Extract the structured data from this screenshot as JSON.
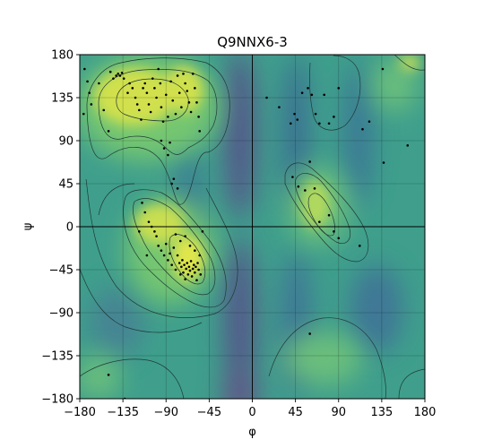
{
  "chart_data": {
    "type": "scatter",
    "title": "Q9NNX6-3",
    "xlabel": "φ",
    "ylabel": "ψ",
    "xlim": [
      -180,
      180
    ],
    "ylim": [
      -180,
      180
    ],
    "xticks": [
      -180,
      -135,
      -90,
      -45,
      0,
      45,
      90,
      135,
      180
    ],
    "yticks": [
      -180,
      -135,
      -90,
      -45,
      0,
      45,
      90,
      135,
      180
    ],
    "xtick_labels": [
      "−180",
      "−135",
      "−90",
      "−45",
      "0",
      "45",
      "90",
      "135",
      "180"
    ],
    "ytick_labels": [
      "−180",
      "−135",
      "−90",
      "−45",
      "0",
      "45",
      "90",
      "135",
      "180"
    ],
    "grid": true,
    "background": "Ramachandran density map (viridis colormap) with contour lines",
    "colors": {
      "low": "#44337c",
      "mid": "#3aa08e",
      "high": "#e4e84a",
      "points": "#000000",
      "contour": "#1f3a36"
    },
    "points": [
      [
        -175,
        165
      ],
      [
        -172,
        152
      ],
      [
        -170,
        140
      ],
      [
        -168,
        128
      ],
      [
        -176,
        118
      ],
      [
        -160,
        150
      ],
      [
        -155,
        122
      ],
      [
        -150,
        100
      ],
      [
        -148,
        162
      ],
      [
        -145,
        155
      ],
      [
        -142,
        158
      ],
      [
        -140,
        160
      ],
      [
        -138,
        158
      ],
      [
        -136,
        161
      ],
      [
        -134,
        155
      ],
      [
        -130,
        140
      ],
      [
        -128,
        150
      ],
      [
        -125,
        145
      ],
      [
        -122,
        135
      ],
      [
        -120,
        128
      ],
      [
        -118,
        122
      ],
      [
        -116,
        112
      ],
      [
        -114,
        145
      ],
      [
        -112,
        150
      ],
      [
        -110,
        140
      ],
      [
        -108,
        128
      ],
      [
        -106,
        120
      ],
      [
        -104,
        155
      ],
      [
        -102,
        145
      ],
      [
        -100,
        135
      ],
      [
        -98,
        165
      ],
      [
        -96,
        150
      ],
      [
        -95,
        125
      ],
      [
        -93,
        110
      ],
      [
        -90,
        138
      ],
      [
        -88,
        115
      ],
      [
        -85,
        152
      ],
      [
        -83,
        132
      ],
      [
        -80,
        118
      ],
      [
        -78,
        158
      ],
      [
        -76,
        140
      ],
      [
        -74,
        125
      ],
      [
        -72,
        160
      ],
      [
        -70,
        150
      ],
      [
        -68,
        142
      ],
      [
        -66,
        130
      ],
      [
        -64,
        120
      ],
      [
        -62,
        160
      ],
      [
        -60,
        145
      ],
      [
        -58,
        130
      ],
      [
        -56,
        115
      ],
      [
        -55,
        100
      ],
      [
        -95,
        90
      ],
      [
        -92,
        82
      ],
      [
        -88,
        75
      ],
      [
        -86,
        88
      ],
      [
        -84,
        45
      ],
      [
        -82,
        50
      ],
      [
        -78,
        40
      ],
      [
        -115,
        25
      ],
      [
        -112,
        15
      ],
      [
        -108,
        5
      ],
      [
        -105,
        0
      ],
      [
        -102,
        -5
      ],
      [
        -100,
        -10
      ],
      [
        -98,
        -20
      ],
      [
        -95,
        -25
      ],
      [
        -92,
        -30
      ],
      [
        -90,
        -18
      ],
      [
        -88,
        -35
      ],
      [
        -86,
        -28
      ],
      [
        -84,
        -40
      ],
      [
        -82,
        -22
      ],
      [
        -80,
        -45
      ],
      [
        -78,
        -30
      ],
      [
        -76,
        -38
      ],
      [
        -75,
        -50
      ],
      [
        -74,
        -42
      ],
      [
        -73,
        -35
      ],
      [
        -72,
        -48
      ],
      [
        -71,
        -40
      ],
      [
        -70,
        -55
      ],
      [
        -69,
        -44
      ],
      [
        -68,
        -38
      ],
      [
        -67,
        -50
      ],
      [
        -66,
        -42
      ],
      [
        -65,
        -46
      ],
      [
        -64,
        -36
      ],
      [
        -63,
        -52
      ],
      [
        -62,
        -44
      ],
      [
        -61,
        -40
      ],
      [
        -60,
        -48
      ],
      [
        -59,
        -42
      ],
      [
        -58,
        -56
      ],
      [
        -57,
        -38
      ],
      [
        -56,
        -45
      ],
      [
        -55,
        -30
      ],
      [
        -54,
        -50
      ],
      [
        -52,
        -5
      ],
      [
        -60,
        -25
      ],
      [
        -65,
        -20
      ],
      [
        -70,
        -10
      ],
      [
        -75,
        -15
      ],
      [
        -80,
        -8
      ],
      [
        -110,
        -30
      ],
      [
        -118,
        -5
      ],
      [
        15,
        135
      ],
      [
        28,
        125
      ],
      [
        40,
        108
      ],
      [
        44,
        118
      ],
      [
        47,
        112
      ],
      [
        52,
        140
      ],
      [
        58,
        145
      ],
      [
        62,
        138
      ],
      [
        66,
        118
      ],
      [
        70,
        108
      ],
      [
        75,
        138
      ],
      [
        80,
        108
      ],
      [
        85,
        115
      ],
      [
        90,
        145
      ],
      [
        115,
        102
      ],
      [
        122,
        110
      ],
      [
        136,
        165
      ],
      [
        162,
        85
      ],
      [
        137,
        67
      ],
      [
        42,
        52
      ],
      [
        48,
        42
      ],
      [
        55,
        38
      ],
      [
        60,
        68
      ],
      [
        65,
        40
      ],
      [
        70,
        5
      ],
      [
        80,
        12
      ],
      [
        85,
        -5
      ],
      [
        90,
        -12
      ],
      [
        112,
        -20
      ],
      [
        60,
        -112
      ],
      [
        -150,
        -155
      ],
      [
        -133,
        -180
      ]
    ]
  }
}
